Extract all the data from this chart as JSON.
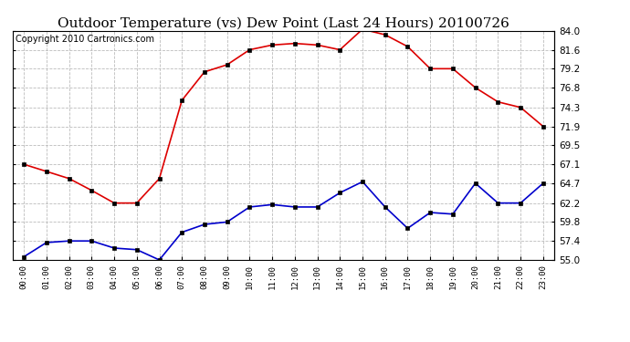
{
  "title": "Outdoor Temperature (vs) Dew Point (Last 24 Hours) 20100726",
  "copyright": "Copyright 2010 Cartronics.com",
  "hours": [
    "00:00",
    "01:00",
    "02:00",
    "03:00",
    "04:00",
    "05:00",
    "06:00",
    "07:00",
    "08:00",
    "09:00",
    "10:00",
    "11:00",
    "12:00",
    "13:00",
    "14:00",
    "15:00",
    "16:00",
    "17:00",
    "18:00",
    "19:00",
    "20:00",
    "21:00",
    "22:00",
    "23:00"
  ],
  "temp": [
    67.1,
    66.2,
    65.3,
    63.8,
    62.2,
    62.2,
    65.3,
    75.2,
    78.8,
    79.7,
    81.6,
    82.2,
    82.4,
    82.2,
    81.6,
    84.2,
    83.5,
    82.0,
    79.2,
    79.2,
    76.8,
    75.0,
    74.3,
    71.9
  ],
  "dew": [
    55.4,
    57.2,
    57.4,
    57.4,
    56.5,
    56.3,
    55.0,
    58.5,
    59.5,
    59.8,
    61.7,
    62.0,
    61.7,
    61.7,
    63.5,
    64.9,
    61.7,
    59.0,
    61.0,
    60.8,
    64.7,
    62.2,
    62.2,
    64.7
  ],
  "temp_color": "#dd0000",
  "dew_color": "#0000cc",
  "bg_color": "#ffffff",
  "grid_color": "#bbbbbb",
  "ylim_min": 55.0,
  "ylim_max": 84.0,
  "yticks": [
    55.0,
    57.4,
    59.8,
    62.2,
    64.7,
    67.1,
    69.5,
    71.9,
    74.3,
    76.8,
    79.2,
    81.6,
    84.0
  ],
  "title_fontsize": 11,
  "copyright_fontsize": 7
}
